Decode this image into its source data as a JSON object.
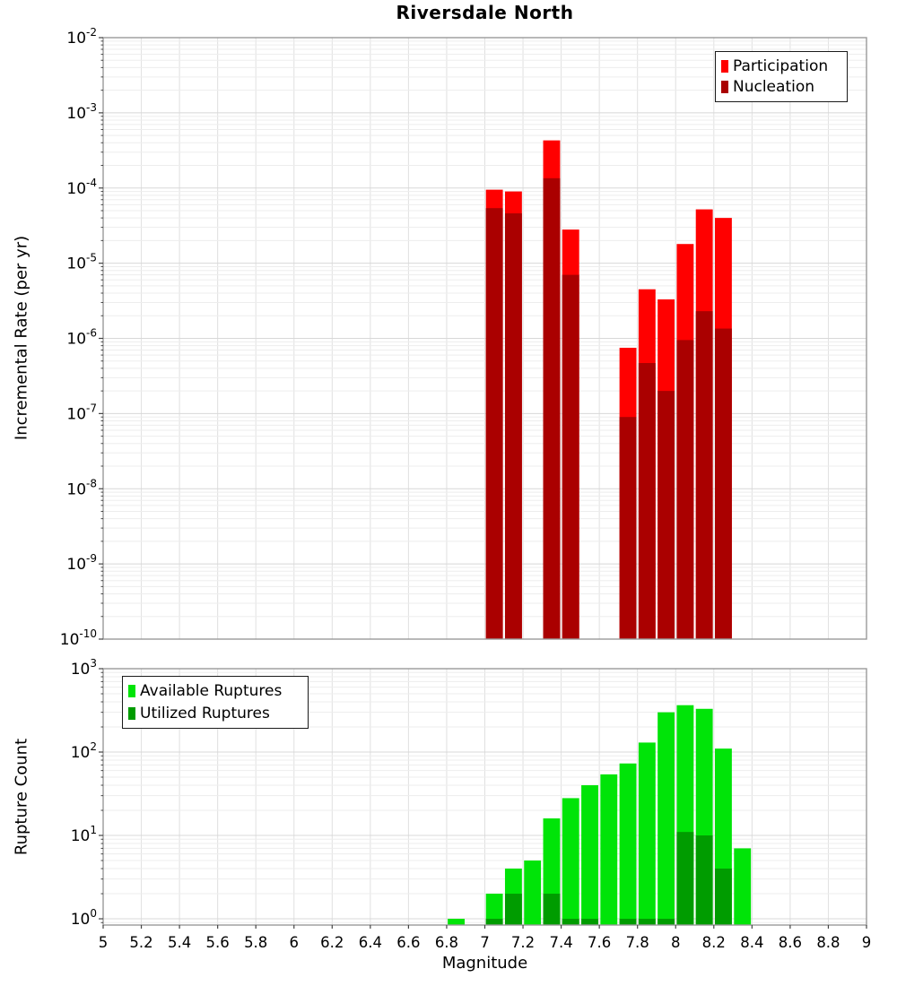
{
  "title": "Riversdale North",
  "xlabel": "Magnitude",
  "colors": {
    "participation": "#FF0000",
    "nucleation": "#AA0000",
    "available": "#00E408",
    "utilized": "#009C00",
    "grid_major": "#D8D8D8",
    "grid_minor": "#EDEDED",
    "grid_vertical": "#E0E0E0",
    "frame": "#999999",
    "tick": "#444444"
  },
  "chart_data": [
    {
      "type": "bar",
      "panel": "top",
      "title": "Riversdale North",
      "ylabel": "Incremental Rate (per yr)",
      "x_axis": {
        "min": 5,
        "max": 9,
        "bin_width": 0.1
      },
      "y_axis": {
        "scale": "log",
        "min_exp": -10,
        "max_exp": -2
      },
      "y_tick_exponents": [
        -2,
        -3,
        -4,
        -5,
        -6,
        -7,
        -8,
        -9,
        -10
      ],
      "x_tick_values": [
        5,
        5.2,
        5.4,
        5.6,
        5.8,
        6,
        6.2,
        6.4,
        6.6,
        6.8,
        7,
        7.2,
        7.4,
        7.6,
        7.8,
        8,
        8.2,
        8.4,
        8.6,
        8.8,
        9
      ],
      "x_tick_labels": [
        "5",
        "5.2",
        "5.4",
        "5.6",
        "5.8",
        "6",
        "6.2",
        "6.4",
        "6.6",
        "6.8",
        "7",
        "7.2",
        "7.4",
        "7.6",
        "7.8",
        "8",
        "8.2",
        "8.4",
        "8.6",
        "8.8",
        "9"
      ],
      "show_x_tick_labels": false,
      "legend": [
        {
          "label": "Participation",
          "color": "participation"
        },
        {
          "label": "Nucleation",
          "color": "nucleation"
        }
      ],
      "bins": [
        7.05,
        7.15,
        7.35,
        7.45,
        7.75,
        7.85,
        7.95,
        8.05,
        8.15,
        8.25
      ],
      "series": [
        {
          "name": "Participation",
          "color": "participation",
          "values": [
            9.5e-05,
            9e-05,
            0.00043,
            2.8e-05,
            7.5e-07,
            4.5e-06,
            3.3e-06,
            1.8e-05,
            5.2e-05,
            4e-05
          ]
        },
        {
          "name": "Nucleation",
          "color": "nucleation",
          "values": [
            5.4e-05,
            4.6e-05,
            0.000135,
            7e-06,
            9e-08,
            4.7e-07,
            2e-07,
            9.5e-07,
            2.3e-06,
            1.35e-06
          ]
        }
      ]
    },
    {
      "type": "bar",
      "panel": "bottom",
      "ylabel": "Rupture Count",
      "x_axis": {
        "min": 5,
        "max": 9,
        "bin_width": 0.1
      },
      "y_axis": {
        "scale": "log",
        "min_exp": 0,
        "max_exp": 3,
        "bottom_exp": -0.075
      },
      "y_tick_exponents": [
        3,
        2,
        1,
        0
      ],
      "x_tick_values": [
        5,
        5.2,
        5.4,
        5.6,
        5.8,
        6,
        6.2,
        6.4,
        6.6,
        6.8,
        7,
        7.2,
        7.4,
        7.6,
        7.8,
        8,
        8.2,
        8.4,
        8.6,
        8.8,
        9
      ],
      "x_tick_labels": [
        "5",
        "5.2",
        "5.4",
        "5.6",
        "5.8",
        "6",
        "6.2",
        "6.4",
        "6.6",
        "6.8",
        "7",
        "7.2",
        "7.4",
        "7.6",
        "7.8",
        "8",
        "8.2",
        "8.4",
        "8.6",
        "8.8",
        "9"
      ],
      "show_x_tick_labels": true,
      "legend": [
        {
          "label": "Available Ruptures",
          "color": "available"
        },
        {
          "label": "Utilized Ruptures",
          "color": "utilized"
        }
      ],
      "bins": [
        6.85,
        7.05,
        7.15,
        7.25,
        7.35,
        7.45,
        7.55,
        7.65,
        7.75,
        7.85,
        7.95,
        8.05,
        8.15,
        8.25,
        8.35
      ],
      "series": [
        {
          "name": "Available Ruptures",
          "color": "available",
          "values": [
            1,
            2,
            4,
            5,
            16,
            28,
            40,
            54,
            73,
            130,
            300,
            365,
            330,
            110,
            7
          ]
        },
        {
          "name": "Utilized Ruptures",
          "color": "utilized",
          "values": [
            0,
            1,
            2,
            0,
            2,
            1,
            1,
            0,
            1,
            1,
            1,
            11,
            10,
            4,
            0
          ]
        }
      ]
    }
  ]
}
